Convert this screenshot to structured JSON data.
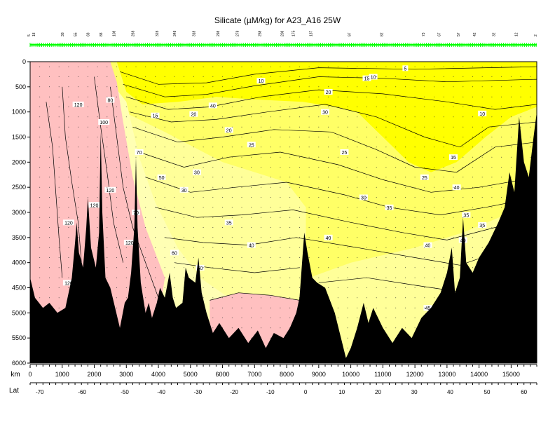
{
  "chart_data": {
    "type": "heatmap",
    "title": "Silicate (µM/kg) for A23_A16 25W",
    "y_axis": {
      "label": "",
      "ticks": [
        0,
        500,
        1000,
        1500,
        2000,
        2500,
        3000,
        3500,
        4000,
        4500,
        5000,
        5500,
        6000
      ],
      "range": [
        0,
        6000
      ],
      "inverted": true
    },
    "x_axis": {
      "label": "km",
      "ticks": [
        0,
        1000,
        2000,
        3000,
        4000,
        5000,
        6000,
        7000,
        8000,
        9000,
        10000,
        11000,
        12000,
        13000,
        14000,
        15000
      ],
      "range": [
        0,
        15800
      ]
    },
    "lat_axis": {
      "label": "Lat",
      "ticks": [
        -70,
        -60,
        -50,
        -40,
        -30,
        -20,
        -10,
        0,
        10,
        20,
        30,
        40,
        50,
        60
      ],
      "tick_km": [
        300,
        1620,
        2950,
        4090,
        5230,
        6360,
        7490,
        8590,
        9720,
        10850,
        11980,
        13100,
        14250,
        15400
      ]
    },
    "station_labels": [
      {
        "km": 0,
        "label": "5"
      },
      {
        "km": 150,
        "label": "18"
      },
      {
        "km": 1050,
        "label": "38"
      },
      {
        "km": 1450,
        "label": "55"
      },
      {
        "km": 1850,
        "label": "68"
      },
      {
        "km": 2250,
        "label": "88"
      },
      {
        "km": 2650,
        "label": "108"
      },
      {
        "km": 3250,
        "label": "268"
      },
      {
        "km": 4000,
        "label": "328"
      },
      {
        "km": 4550,
        "label": "348"
      },
      {
        "km": 5150,
        "label": "318"
      },
      {
        "km": 5900,
        "label": "298"
      },
      {
        "km": 6500,
        "label": "278"
      },
      {
        "km": 7200,
        "label": "258"
      },
      {
        "km": 7900,
        "label": "208"
      },
      {
        "km": 8250,
        "label": "175"
      },
      {
        "km": 8800,
        "label": "137"
      },
      {
        "km": 10000,
        "label": "97"
      },
      {
        "km": 11000,
        "label": "82"
      },
      {
        "km": 12300,
        "label": "73"
      },
      {
        "km": 12800,
        "label": "67"
      },
      {
        "km": 13400,
        "label": "57"
      },
      {
        "km": 13900,
        "label": "42"
      },
      {
        "km": 14500,
        "label": "32"
      },
      {
        "km": 15200,
        "label": "12"
      },
      {
        "km": 15800,
        "label": "2"
      }
    ],
    "color_bands": [
      {
        "range": "< 20",
        "color": "#ffff00"
      },
      {
        "range": "20 - 40",
        "color": "#ffff66"
      },
      {
        "range": "40 - 60",
        "color": "#ffff99"
      },
      {
        "range": "60 - 100",
        "color": "#ffffb4"
      },
      {
        "range": "> 100",
        "color": "#ffc0c0"
      }
    ],
    "colors": {
      "bottom": "#000000",
      "station_marks": "#00ff00",
      "frame": "#000000"
    },
    "contour_labels": [
      {
        "km": 11700,
        "depth": 130,
        "label": "5"
      },
      {
        "km": 10700,
        "depth": 300,
        "label": "10"
      },
      {
        "km": 10500,
        "depth": 330,
        "label": "15"
      },
      {
        "km": 9300,
        "depth": 600,
        "label": "20"
      },
      {
        "km": 5700,
        "depth": 870,
        "label": "40"
      },
      {
        "km": 7200,
        "depth": 380,
        "label": "10"
      },
      {
        "km": 5100,
        "depth": 1040,
        "label": "20"
      },
      {
        "km": 3900,
        "depth": 1070,
        "label": "15"
      },
      {
        "km": 14100,
        "depth": 1030,
        "label": "10"
      },
      {
        "km": 13200,
        "depth": 1900,
        "label": "15"
      },
      {
        "km": 9200,
        "depth": 1000,
        "label": "30"
      },
      {
        "km": 9800,
        "depth": 1800,
        "label": "25"
      },
      {
        "km": 6200,
        "depth": 1360,
        "label": "20"
      },
      {
        "km": 6900,
        "depth": 1650,
        "label": "25"
      },
      {
        "km": 5200,
        "depth": 2200,
        "label": "30"
      },
      {
        "km": 4100,
        "depth": 2300,
        "label": "50"
      },
      {
        "km": 3400,
        "depth": 1800,
        "label": "70"
      },
      {
        "km": 2500,
        "depth": 760,
        "label": "80"
      },
      {
        "km": 2300,
        "depth": 1200,
        "label": "100"
      },
      {
        "km": 1500,
        "depth": 850,
        "label": "120"
      },
      {
        "km": 2500,
        "depth": 2550,
        "label": "120"
      },
      {
        "km": 1200,
        "depth": 3200,
        "label": "120"
      },
      {
        "km": 2000,
        "depth": 2850,
        "label": "120"
      },
      {
        "km": 3300,
        "depth": 3000,
        "label": "70"
      },
      {
        "km": 3100,
        "depth": 3600,
        "label": "120"
      },
      {
        "km": 4800,
        "depth": 2550,
        "label": "30"
      },
      {
        "km": 10400,
        "depth": 2700,
        "label": "30"
      },
      {
        "km": 11200,
        "depth": 2900,
        "label": "35"
      },
      {
        "km": 12300,
        "depth": 2300,
        "label": "25"
      },
      {
        "km": 13300,
        "depth": 2500,
        "label": "40"
      },
      {
        "km": 13600,
        "depth": 3050,
        "label": "35"
      },
      {
        "km": 14100,
        "depth": 3250,
        "label": "35"
      },
      {
        "km": 13500,
        "depth": 3550,
        "label": "40"
      },
      {
        "km": 12400,
        "depth": 3650,
        "label": "40"
      },
      {
        "km": 9300,
        "depth": 3500,
        "label": "40"
      },
      {
        "km": 6200,
        "depth": 3200,
        "label": "35"
      },
      {
        "km": 6900,
        "depth": 3650,
        "label": "40"
      },
      {
        "km": 5300,
        "depth": 4100,
        "label": "50"
      },
      {
        "km": 4500,
        "depth": 3800,
        "label": "60"
      },
      {
        "km": 12400,
        "depth": 4900,
        "label": "45"
      },
      {
        "km": 14300,
        "depth": 4700,
        "label": "50"
      },
      {
        "km": 3300,
        "depth": 4900,
        "label": "120"
      },
      {
        "km": 1200,
        "depth": 4400,
        "label": "120"
      }
    ]
  }
}
